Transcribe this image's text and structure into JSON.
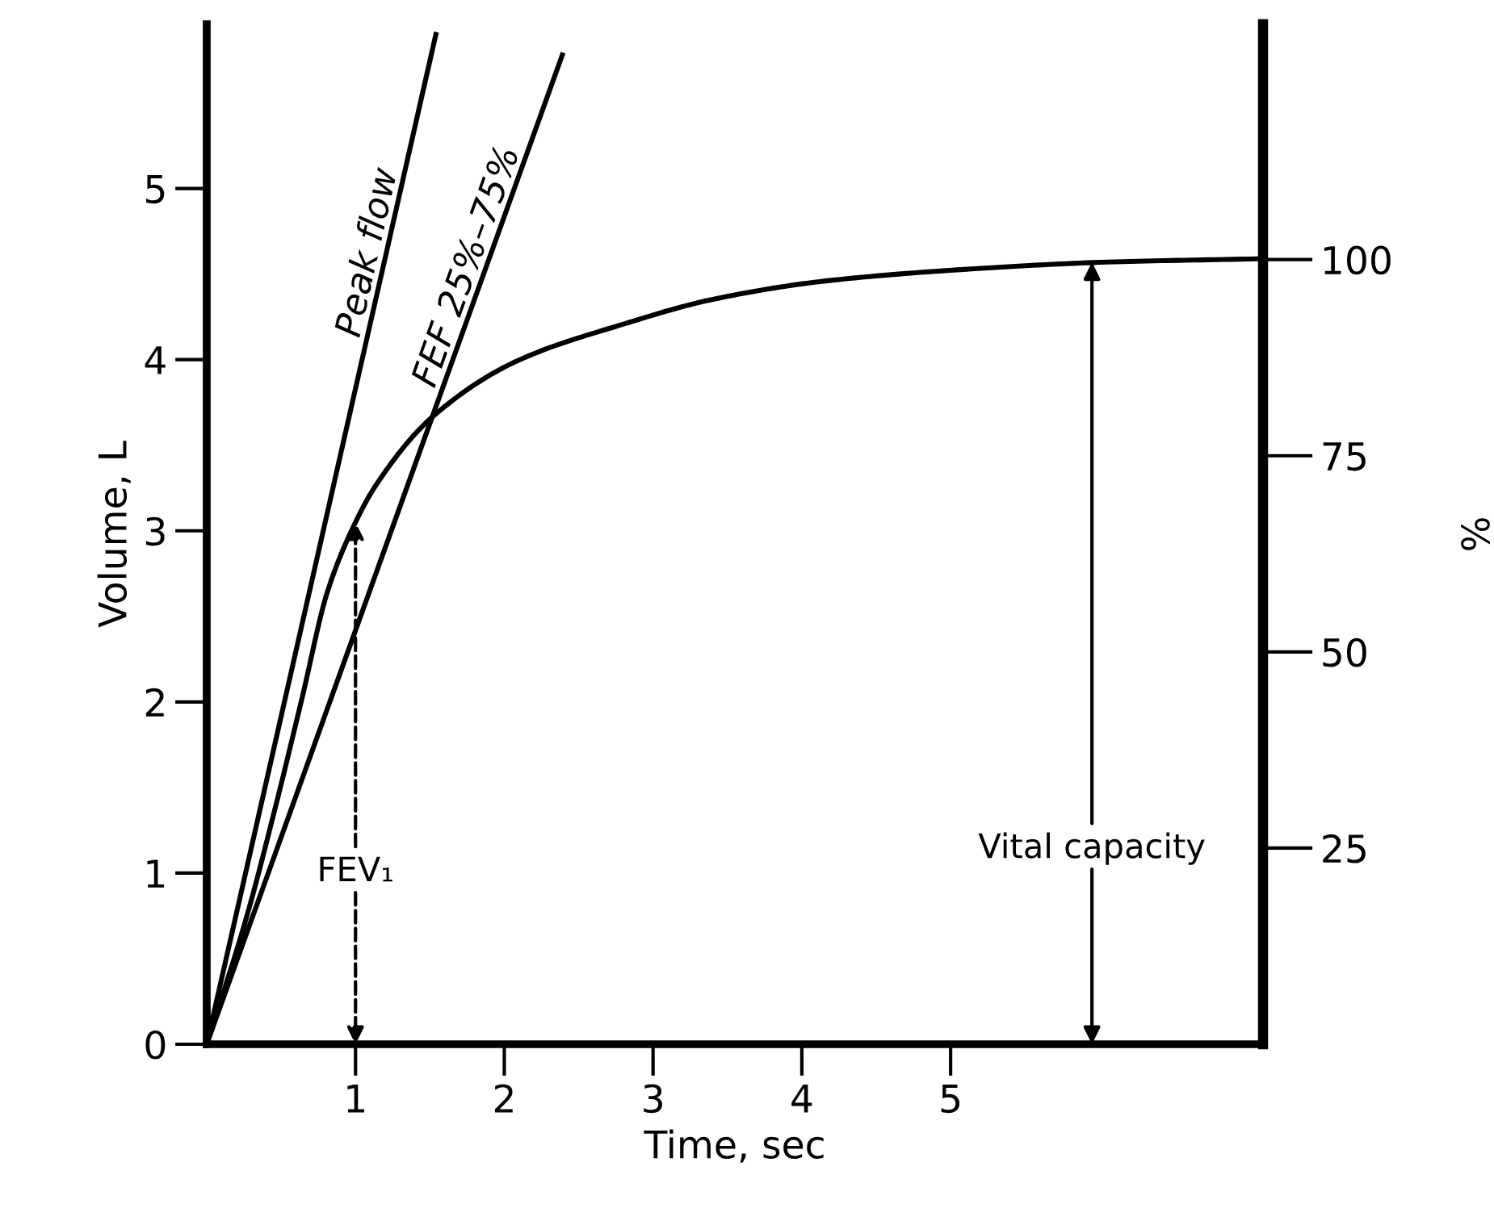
{
  "chart_data": {
    "type": "line",
    "xlabel": "Time, sec",
    "ylabel": "Volume, L",
    "y2label": "%",
    "xlim": [
      0,
      7.1
    ],
    "xticks": [
      1,
      2,
      3,
      4,
      5
    ],
    "ylim": [
      0,
      5.96
    ],
    "yticks": [
      0,
      1,
      2,
      3,
      4,
      5
    ],
    "y2lim": [
      0,
      130
    ],
    "y2ticks": [
      25,
      50,
      75,
      100
    ],
    "series": [
      {
        "x": [
          0,
          0.27,
          0.46,
          0.64,
          0.81,
          1.0,
          1.14,
          1.51,
          2.08,
          2.81,
          3.39,
          4.16,
          5.14,
          6.05,
          7.1
        ],
        "values": [
          0,
          0.75,
          1.38,
          2.02,
          2.64,
          3.05,
          3.27,
          3.66,
          3.99,
          4.21,
          4.35,
          4.46,
          4.53,
          4.57,
          4.59
        ],
        "color": "#000000"
      },
      {
        "name": "Peak flow",
        "x": [
          0,
          1.54
        ],
        "values": [
          0,
          5.9
        ],
        "color": "#000000"
      },
      {
        "name": "FEF 25%–75%",
        "x": [
          0,
          2.39
        ],
        "values": [
          0,
          5.78
        ],
        "color": "#000000"
      }
    ],
    "annotations": [
      {
        "text": "FEV₁",
        "x": 1,
        "y": 3.05
      },
      {
        "text": "Vital capacity",
        "x": 5.95,
        "y": 4.57
      }
    ],
    "grid": false,
    "legend": false,
    "marker": "none",
    "line_style": "solid"
  }
}
